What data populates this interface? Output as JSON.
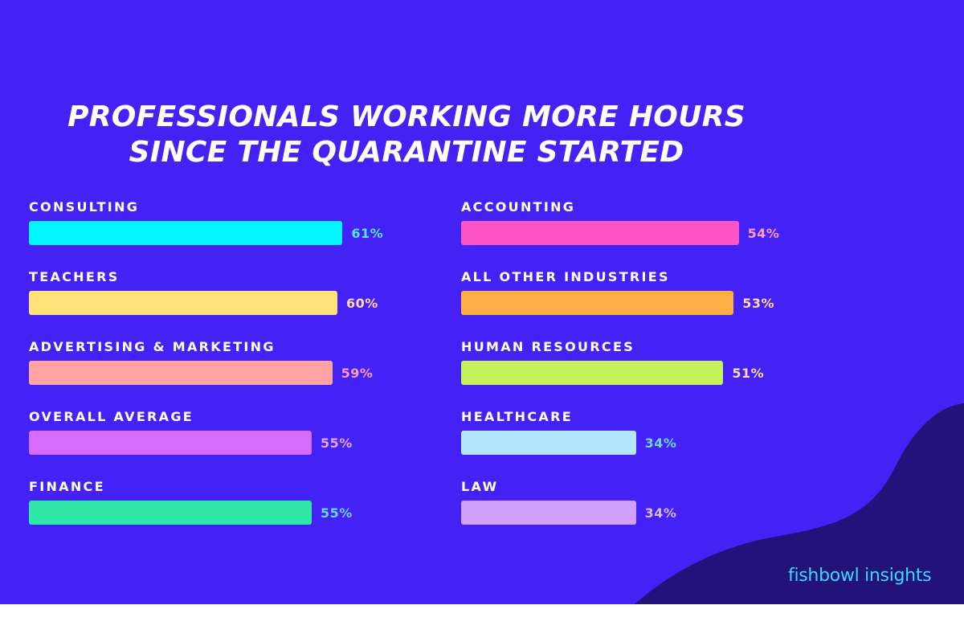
{
  "chart_data": {
    "type": "bar",
    "title_lines": [
      "PROFESSIONALS WORKING MORE HOURS",
      "SINCE THE QUARANTINE STARTED"
    ],
    "value_suffix": "%",
    "xlim": [
      0,
      100
    ],
    "columns": [
      {
        "categories": [
          "CONSULTING",
          "TEACHERS",
          "ADVERTISING & MARKETING",
          "OVERALL AVERAGE",
          "FINANCE"
        ],
        "values": [
          61,
          60,
          59,
          55,
          55
        ],
        "labels": [
          "61%",
          "60%",
          "59%",
          "55%",
          "55%"
        ],
        "colors": [
          "#00f7ff",
          "#ffe37a",
          "#ffa3a3",
          "#d66cff",
          "#2ee8a6"
        ]
      },
      {
        "categories": [
          "ACCOUNTING",
          "ALL OTHER INDUSTRIES",
          "HUMAN RESOURCES",
          "HEALTHCARE",
          "LAW"
        ],
        "values": [
          54,
          53,
          51,
          34,
          34
        ],
        "labels": [
          "54%",
          "53%",
          "51%",
          "34%",
          "34%"
        ],
        "colors": [
          "#ff55c4",
          "#ffad45",
          "#c3f25c",
          "#b5e6ff",
          "#d1a0ff"
        ]
      }
    ],
    "label_colors": [
      "#4fe8ff",
      "#ffd9a8",
      "#ff9bc4",
      "#e0a8ff",
      "#6fd4ff",
      "#d9b8ff"
    ]
  },
  "brand": "fishbowl insights",
  "colors": {
    "background": "#4422f5",
    "corner_blob": "#22127a",
    "text": "#ffffff"
  }
}
